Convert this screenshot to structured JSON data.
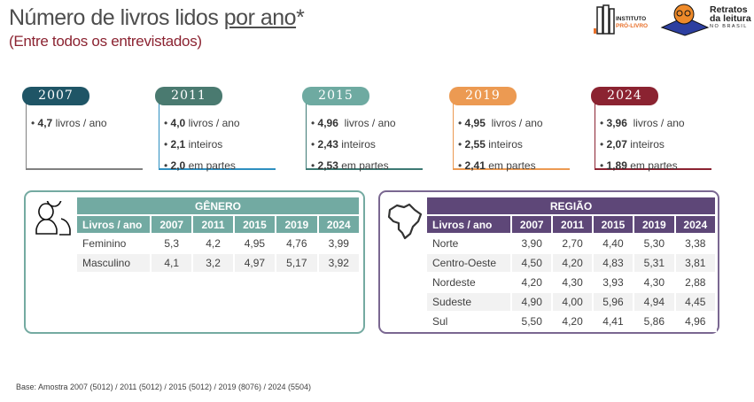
{
  "header": {
    "title_part1": "Número de livros lidos ",
    "title_underlined": "por ano",
    "title_suffix": "*",
    "subtitle": "(Entre todos os entrevistados)"
  },
  "logos": {
    "instituto": "INSTITUTO",
    "prolivro": "PRÓ-LIVRO",
    "retratos1": "Retratos",
    "retratos2": "da leitura",
    "retratos3": "NO BRASIL"
  },
  "years": [
    {
      "year": "2007",
      "color": "#1f5566",
      "line": "#808080",
      "items": [
        {
          "v": "4,7",
          "t": " livros / ano"
        }
      ]
    },
    {
      "year": "2011",
      "color": "#4a7a70",
      "line": "#2e8fc0",
      "items": [
        {
          "v": "4,0",
          "t": " livros / ano"
        },
        {
          "v": "2,1",
          "t": " inteiros"
        },
        {
          "v": "2,0",
          "t": " em partes"
        }
      ]
    },
    {
      "year": "2015",
      "color": "#6eaaa1",
      "line": "#3d7a74",
      "items": [
        {
          "v": "4,96",
          "t": "  livros / ano"
        },
        {
          "v": "2,43",
          "t": " inteiros"
        },
        {
          "v": "2,53",
          "t": " em partes"
        }
      ]
    },
    {
      "year": "2019",
      "color": "#ec9a52",
      "line": "#ec9a52",
      "items": [
        {
          "v": "4,95",
          "t": "  livros / ano"
        },
        {
          "v": "2,55",
          "t": " inteiros"
        },
        {
          "v": "2,41",
          "t": " em partes"
        }
      ]
    },
    {
      "year": "2024",
      "color": "#8b2331",
      "line": "#8b2331",
      "items": [
        {
          "v": "3,96",
          "t": "  livros / ano"
        },
        {
          "v": "2,07",
          "t": " inteiros"
        },
        {
          "v": "1,89",
          "t": " em partes"
        }
      ]
    }
  ],
  "genero": {
    "title": "GÊNERO",
    "color": "#72aaa2",
    "headers": [
      "Livros / ano",
      "2007",
      "2011",
      "2015",
      "2019",
      "2024"
    ],
    "rows": [
      [
        "Feminino",
        "5,3",
        "4,2",
        "4,95",
        "4,76",
        "3,99"
      ],
      [
        "Masculino",
        "4,1",
        "3,2",
        "4,97",
        "5,17",
        "3,92"
      ]
    ]
  },
  "regiao": {
    "title": "REGIÃO",
    "color": "#5e4778",
    "headers": [
      "Livros / ano",
      "2007",
      "2011",
      "2015",
      "2019",
      "2024"
    ],
    "rows": [
      [
        "Norte",
        "3,90",
        "2,70",
        "4,40",
        "5,30",
        "3,38"
      ],
      [
        "Centro-Oeste",
        "4,50",
        "4,20",
        "4,83",
        "5,31",
        "3,81"
      ],
      [
        "Nordeste",
        "4,20",
        "4,30",
        "3,93",
        "4,30",
        "2,88"
      ],
      [
        "Sudeste",
        "4,90",
        "4,00",
        "5,96",
        "4,94",
        "4,45"
      ],
      [
        "Sul",
        "5,50",
        "4,20",
        "4,41",
        "5,86",
        "4,96"
      ]
    ]
  },
  "footer": "Base: Amostra 2007 (5012) / 2011 (5012) / 2015 (5012) / 2019 (8076) / 2024 (5504)"
}
